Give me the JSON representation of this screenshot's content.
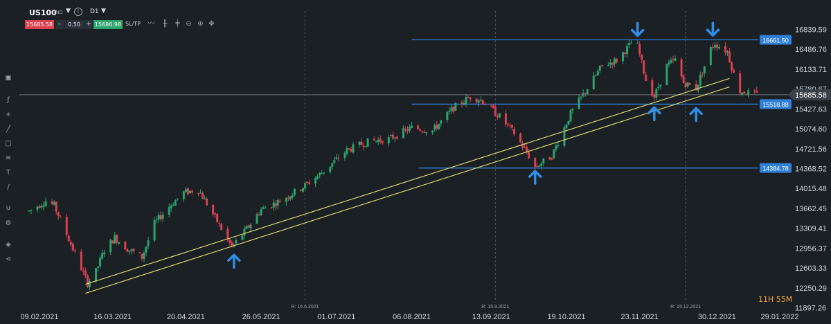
{
  "toolbar": {
    "symbol": "US100",
    "market": "IND",
    "timeframe": "D1",
    "sell_price": "15685.58",
    "volume": "0.50",
    "buy_price": "15686.98",
    "minus_label": "–",
    "plus_label": "+",
    "sltp_label": "SL/TP",
    "caret": "▼",
    "info": "i",
    "icons": [
      "line-chart-icon",
      "candles-icon",
      "bars-icon",
      "zoom-out-icon",
      "zoom-in-icon",
      "move-icon"
    ]
  },
  "sidebar": {
    "icons": [
      "window-icon",
      "function-icon",
      "crosshair-icon",
      "pencil-icon",
      "rectangle-icon",
      "fibonacci-icon",
      "text-icon",
      "brush-icon",
      "magnet-icon",
      "settings-icon",
      "layers-icon",
      "share-icon"
    ]
  },
  "countdown": "11H 55M",
  "colors": {
    "background": "#1b2025",
    "bull": "#2ba36b",
    "bear": "#d9414f",
    "level_line": "#2f7fd8",
    "trend_line": "#d8d56a",
    "arrow": "#2f8fe8",
    "current_price_line": "#8a939b"
  },
  "chart_data": {
    "type": "candlestick",
    "x_tick_labels": [
      "09.02.2021",
      "16.03.2021",
      "20.04.2021",
      "26.05.2021",
      "01.07.2021",
      "06.08.2021",
      "13.09.2021",
      "19.10.2021",
      "23.11.2021",
      "30.12.2021",
      "29.01.2022"
    ],
    "y_tick_labels": [
      "16839.59",
      "16486.76",
      "16133.71",
      "15780.67",
      "15427.63",
      "15074.60",
      "14721.56",
      "14368.52",
      "14015.48",
      "13662.45",
      "13309.41",
      "12956.37",
      "12603.33",
      "12250.29",
      "11897.26"
    ],
    "ylim": [
      11897.26,
      16839.59
    ],
    "current_price": "15685.58",
    "levels": [
      {
        "value": 16661.5,
        "label": "16661.50"
      },
      {
        "value": 15518.88,
        "label": "15518.88"
      },
      {
        "value": 14384.78,
        "label": "14384.78"
      }
    ],
    "rollover_markers": [
      {
        "date": "16.6.2021",
        "label": "R: 16.6.2021"
      },
      {
        "date": "15.9.2021",
        "label": "R: 15.9.2021"
      },
      {
        "date": "15.12.2021",
        "label": "R: 15.12.2021"
      }
    ],
    "trendlines": [
      {
        "from": [
          "2021-03-03",
          12320
        ],
        "to": [
          "2022-01-05",
          15975
        ]
      },
      {
        "from": [
          "2021-03-03",
          12160
        ],
        "to": [
          "2022-01-05",
          15825
        ]
      }
    ],
    "arrows": [
      {
        "date": "2021-05-13",
        "price": 12840,
        "direction": "up"
      },
      {
        "date": "2021-10-04",
        "price": 14330,
        "direction": "up"
      },
      {
        "date": "2021-11-22",
        "price": 16735,
        "direction": "down"
      },
      {
        "date": "2021-11-30",
        "price": 15460,
        "direction": "up"
      },
      {
        "date": "2021-12-20",
        "price": 15445,
        "direction": "up"
      },
      {
        "date": "2021-12-28",
        "price": 16740,
        "direction": "down"
      }
    ],
    "close_path": [
      [
        "2021-02-04",
        13620
      ],
      [
        "2021-02-12",
        13800
      ],
      [
        "2021-02-16",
        13720
      ],
      [
        "2021-02-25",
        12950
      ],
      [
        "2021-03-04",
        12340
      ],
      [
        "2021-03-08",
        12550
      ],
      [
        "2021-03-12",
        12930
      ],
      [
        "2021-03-17",
        13150
      ],
      [
        "2021-03-23",
        12950
      ],
      [
        "2021-03-30",
        12800
      ],
      [
        "2021-04-05",
        13400
      ],
      [
        "2021-04-12",
        13700
      ],
      [
        "2021-04-19",
        13950
      ],
      [
        "2021-04-26",
        14000
      ],
      [
        "2021-05-04",
        13500
      ],
      [
        "2021-05-12",
        12980
      ],
      [
        "2021-05-18",
        13250
      ],
      [
        "2021-05-26",
        13650
      ],
      [
        "2021-06-04",
        13800
      ],
      [
        "2021-06-15",
        14050
      ],
      [
        "2021-06-24",
        14300
      ],
      [
        "2021-07-06",
        14700
      ],
      [
        "2021-07-16",
        14850
      ],
      [
        "2021-07-26",
        14900
      ],
      [
        "2021-08-06",
        15100
      ],
      [
        "2021-08-16",
        15050
      ],
      [
        "2021-08-26",
        15450
      ],
      [
        "2021-09-03",
        15650
      ],
      [
        "2021-09-08",
        15600
      ],
      [
        "2021-09-17",
        15300
      ],
      [
        "2021-09-24",
        15000
      ],
      [
        "2021-10-01",
        14600
      ],
      [
        "2021-10-04",
        14400
      ],
      [
        "2021-10-12",
        14600
      ],
      [
        "2021-10-21",
        15350
      ],
      [
        "2021-10-29",
        15800
      ],
      [
        "2021-11-05",
        16200
      ],
      [
        "2021-11-12",
        16300
      ],
      [
        "2021-11-19",
        16600
      ],
      [
        "2021-11-22",
        16550
      ],
      [
        "2021-11-26",
        15950
      ],
      [
        "2021-11-30",
        15650
      ],
      [
        "2021-12-06",
        16200
      ],
      [
        "2021-12-10",
        16300
      ],
      [
        "2021-12-14",
        15900
      ],
      [
        "2021-12-20",
        15800
      ],
      [
        "2021-12-27",
        16500
      ],
      [
        "2021-12-29",
        16600
      ],
      [
        "2022-01-04",
        16450
      ],
      [
        "2022-01-07",
        16050
      ],
      [
        "2022-01-10",
        15750
      ],
      [
        "2022-01-14",
        15720
      ],
      [
        "2022-01-18",
        15685
      ]
    ]
  }
}
